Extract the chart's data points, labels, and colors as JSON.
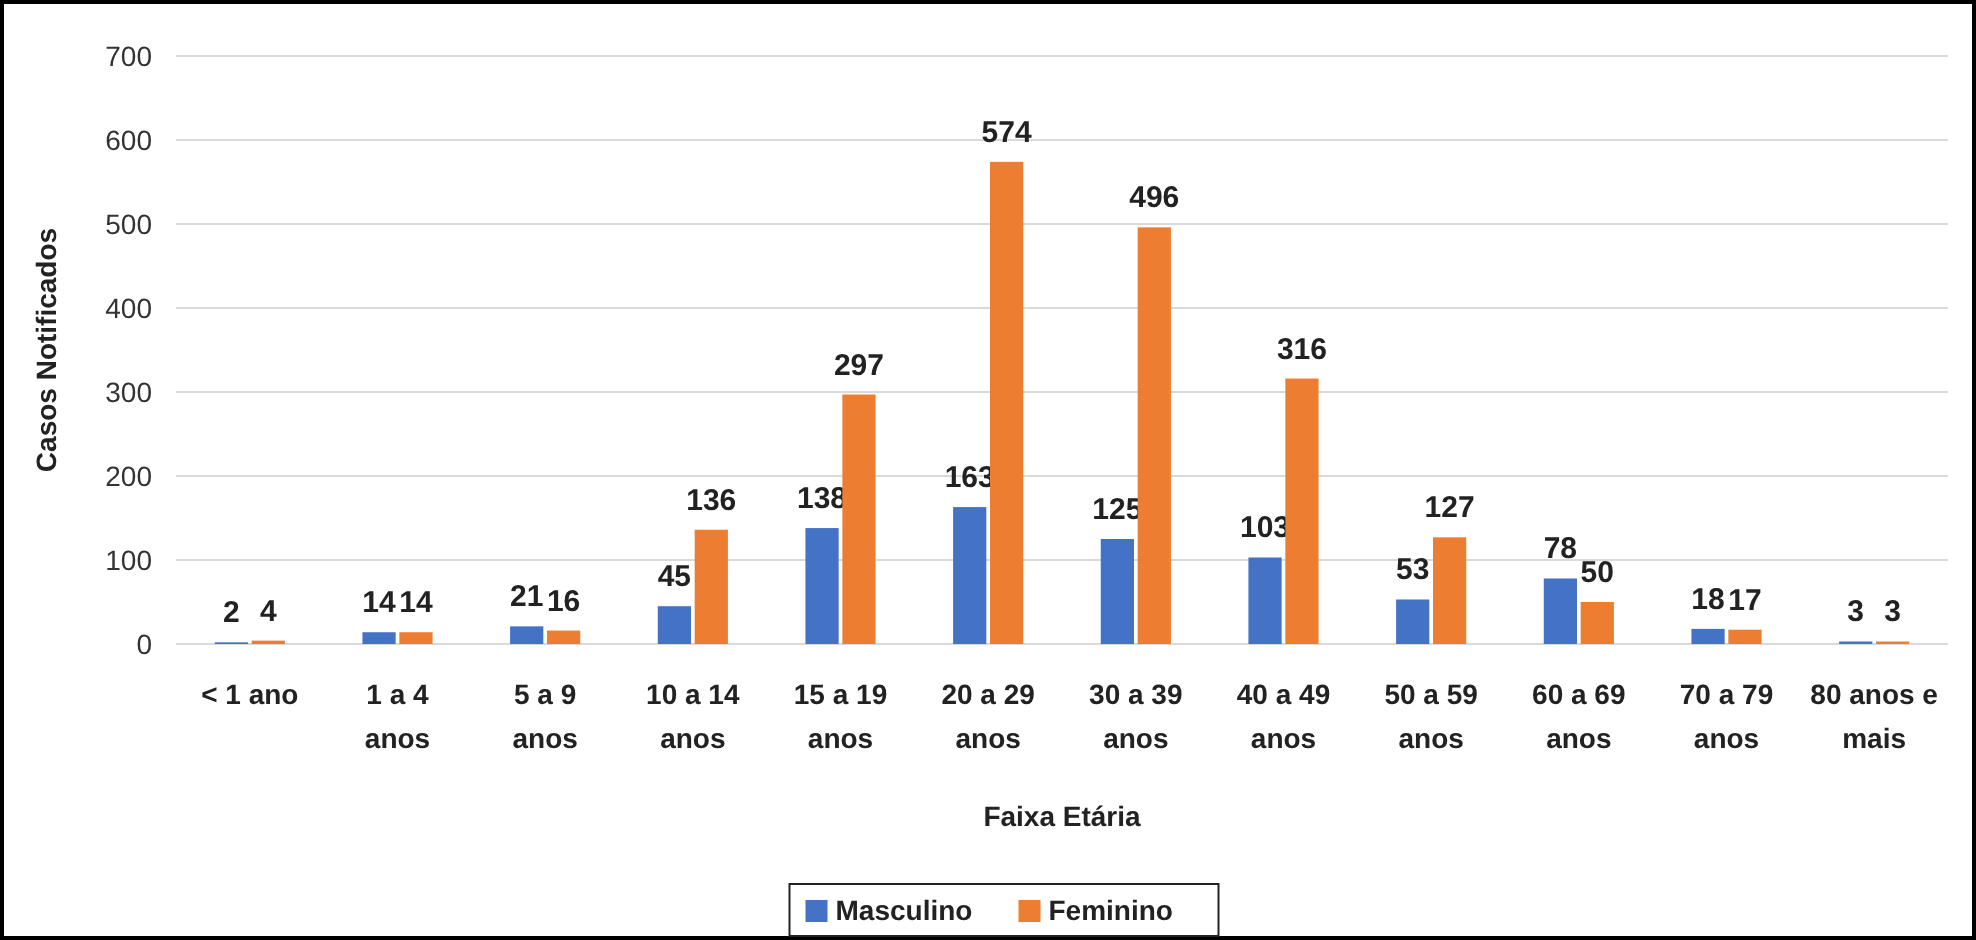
{
  "chart_data": {
    "type": "bar",
    "categories": [
      "< 1 ano",
      "1 a 4 anos",
      "5 a 9 anos",
      "10 a 14 anos",
      "15 a 19 anos",
      "20 a 29 anos",
      "30 a 39 anos",
      "40 a 49 anos",
      "50 a 59 anos",
      "60 a 69 anos",
      "70 a 79 anos",
      "80 anos e mais"
    ],
    "series": [
      {
        "name": "Masculino",
        "color": "#4472c4",
        "values": [
          2,
          14,
          21,
          45,
          138,
          163,
          125,
          103,
          53,
          78,
          18,
          3
        ]
      },
      {
        "name": "Feminino",
        "color": "#ed7d31",
        "values": [
          4,
          14,
          16,
          136,
          297,
          574,
          496,
          316,
          127,
          50,
          17,
          3
        ]
      }
    ],
    "xlabel": "Faixa Etária",
    "ylabel": "Casos Notificados",
    "ylim": [
      0,
      700
    ],
    "yticks": [
      0,
      100,
      200,
      300,
      400,
      500,
      600,
      700
    ],
    "grid": "y",
    "legend": "bottom",
    "data_labels": true
  }
}
